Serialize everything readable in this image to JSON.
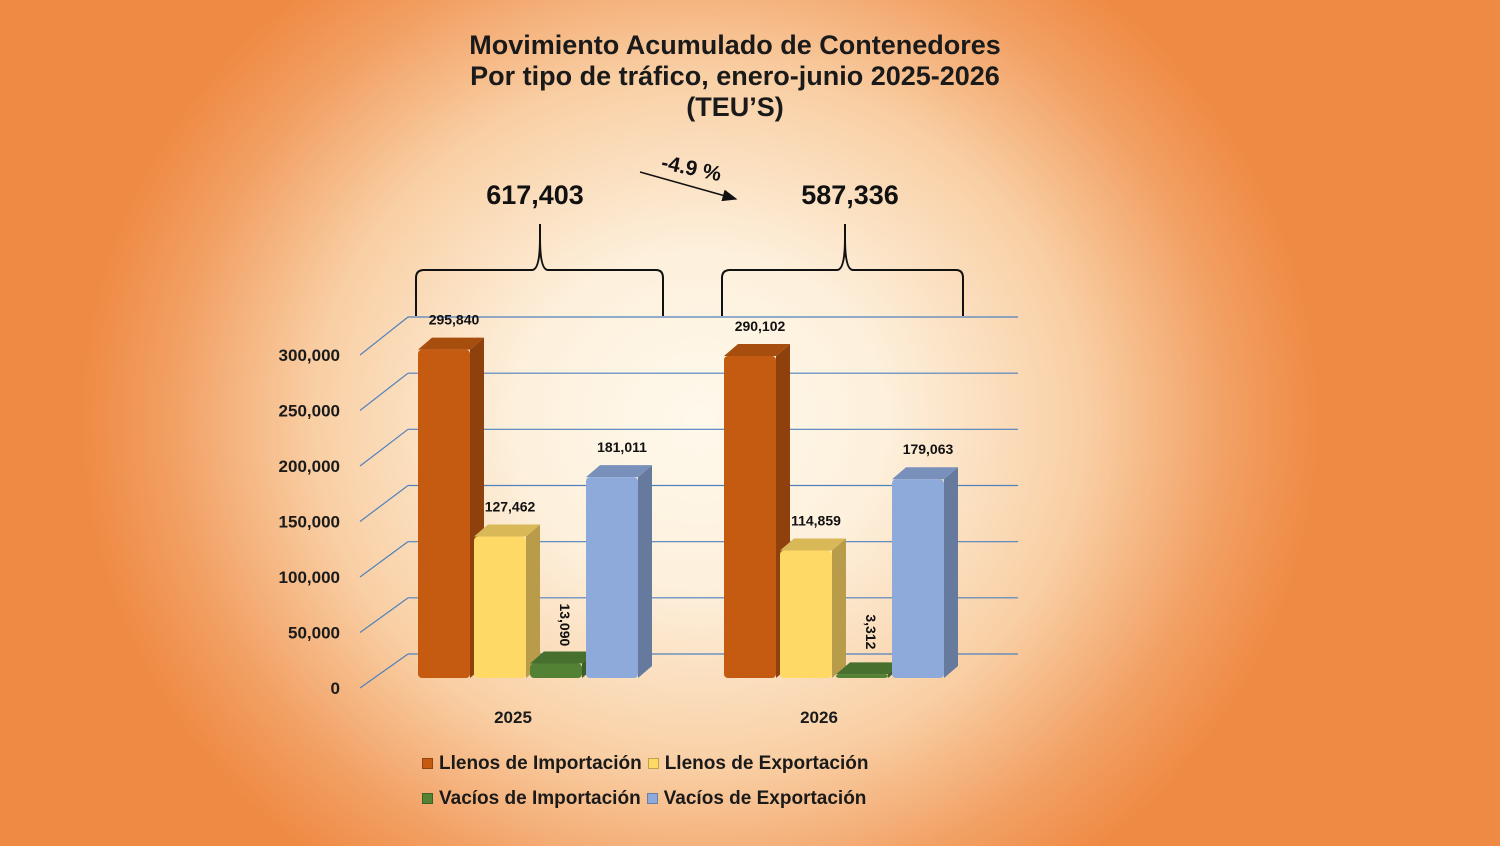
{
  "title_lines": [
    "Movimiento Acumulado de Contenedores",
    "Por tipo de tráfico, enero-junio 2025-2026",
    "(TEU’S)"
  ],
  "annotations": {
    "total_2025": "617,403",
    "total_2026": "587,336",
    "change": "-4.9 %"
  },
  "chart_data": {
    "type": "bar",
    "categories": [
      "2025",
      "2026"
    ],
    "series": [
      {
        "name": "Llenos de Importación",
        "values": [
          295840,
          290102
        ],
        "labels": [
          "295,840",
          "290,102"
        ],
        "color": "#c55a11"
      },
      {
        "name": "Llenos de Exportación",
        "values": [
          127462,
          114859
        ],
        "labels": [
          "127,462",
          "114,859"
        ],
        "color": "#ffd966"
      },
      {
        "name": "Vacíos de Importación",
        "values": [
          13090,
          3312
        ],
        "labels": [
          "13,090",
          "3,312"
        ],
        "color": "#548235"
      },
      {
        "name": "Vacíos de Exportación",
        "values": [
          181011,
          179063
        ],
        "labels": [
          "181,011",
          "179,063"
        ],
        "color": "#8eaadb"
      }
    ],
    "ylim": [
      0,
      300000
    ],
    "yticks": [
      0,
      50000,
      100000,
      150000,
      200000,
      250000,
      300000
    ],
    "ytick_labels": [
      "0",
      "50,000",
      "100,000",
      "150,000",
      "200,000",
      "250,000",
      "300,000"
    ],
    "grid": true,
    "legend_position": "bottom"
  }
}
